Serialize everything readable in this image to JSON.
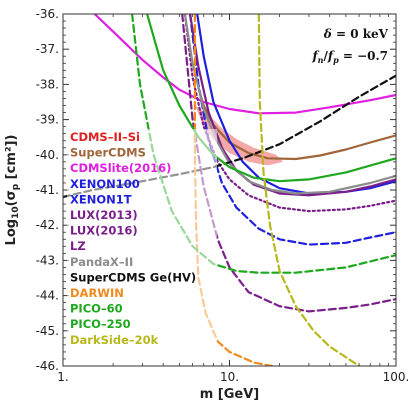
{
  "chart_data": {
    "type": "line",
    "xscale": "log",
    "xlim": [
      1,
      100
    ],
    "ylim": [
      -46,
      -36
    ],
    "xlabel": "m  [GeV]",
    "ylabel": "Log₁₀(σp [cm²])",
    "ylabel_parts": {
      "pre": "Log",
      "sub": "10",
      "mid": "(σ",
      "sub2": "p",
      "post": " [cm²])"
    },
    "x_ticks": [
      {
        "value": 1,
        "label": "1."
      },
      {
        "value": 10,
        "label": "10."
      },
      {
        "value": 100,
        "label": "100."
      }
    ],
    "y_ticks": [
      {
        "value": -36,
        "label": "-36."
      },
      {
        "value": -37,
        "label": "-37."
      },
      {
        "value": -38,
        "label": "-38."
      },
      {
        "value": -39,
        "label": "-39."
      },
      {
        "value": -40,
        "label": "-40."
      },
      {
        "value": -41,
        "label": "-41."
      },
      {
        "value": -42,
        "label": "-42."
      },
      {
        "value": -43,
        "label": "-43."
      },
      {
        "value": -44,
        "label": "-44."
      },
      {
        "value": -45,
        "label": "-45."
      },
      {
        "value": -46,
        "label": "-46."
      }
    ],
    "annotations": [
      "δ = 0 keV",
      "fn/fp = −0.7"
    ],
    "annotation_parts": {
      "delta": {
        "sym": "δ",
        "rest": " = 0 keV"
      },
      "ratio": {
        "a": "f",
        "asub": "n",
        "slash": "/",
        "b": "f",
        "bsub": "p",
        "rest": " = −0.7"
      }
    },
    "signal_region": {
      "name": "CDMS-II-Si",
      "color": "#f28b8b",
      "upper": [
        [
          6.2,
          -38.6
        ],
        [
          7,
          -38.75
        ],
        [
          8,
          -39.0
        ],
        [
          9,
          -39.25
        ],
        [
          11,
          -39.55
        ],
        [
          14,
          -39.8
        ],
        [
          19,
          -40.0
        ],
        [
          21,
          -40.2
        ]
      ],
      "lower": [
        [
          21,
          -40.2
        ],
        [
          17,
          -40.3
        ],
        [
          13,
          -40.2
        ],
        [
          10,
          -39.95
        ],
        [
          8.5,
          -39.7
        ],
        [
          7.2,
          -39.3
        ],
        [
          6.2,
          -38.6
        ]
      ]
    },
    "series": [
      {
        "name": "SuperCDMS",
        "color": "#a0663a",
        "dash": "solid",
        "points": [
          [
            6.5,
            -38.1
          ],
          [
            7,
            -38.6
          ],
          [
            8,
            -39.15
          ],
          [
            10,
            -39.65
          ],
          [
            13,
            -39.95
          ],
          [
            17,
            -40.1
          ],
          [
            25,
            -40.12
          ],
          [
            35,
            -40.02
          ],
          [
            50,
            -39.85
          ],
          [
            70,
            -39.65
          ],
          [
            100,
            -39.45
          ]
        ]
      },
      {
        "name": "CDMSlite(2016)",
        "color": "#e020e0",
        "dash": "solid",
        "points": [
          [
            1.55,
            -36.0
          ],
          [
            2,
            -36.5
          ],
          [
            3,
            -37.3
          ],
          [
            4,
            -37.8
          ],
          [
            5,
            -38.15
          ],
          [
            7,
            -38.5
          ],
          [
            10,
            -38.7
          ],
          [
            15,
            -38.82
          ],
          [
            25,
            -38.8
          ],
          [
            40,
            -38.65
          ],
          [
            70,
            -38.45
          ],
          [
            100,
            -38.3
          ]
        ]
      },
      {
        "name": "XENON100",
        "color": "#1f1fe0",
        "dash": "solid",
        "points": [
          [
            6.4,
            -36.0
          ],
          [
            7,
            -37.2
          ],
          [
            8,
            -38.5
          ],
          [
            10,
            -39.6
          ],
          [
            12,
            -40.2
          ],
          [
            15,
            -40.65
          ],
          [
            20,
            -40.95
          ],
          [
            30,
            -41.1
          ],
          [
            50,
            -41.05
          ],
          [
            70,
            -40.95
          ],
          [
            100,
            -40.75
          ]
        ]
      },
      {
        "name": "XENON1T",
        "color": "#1f1fe0",
        "dash": "dashed",
        "points": [
          [
            5.8,
            -36.0
          ],
          [
            6.5,
            -38.0
          ],
          [
            7.5,
            -39.6
          ],
          [
            9,
            -40.8
          ],
          [
            11,
            -41.5
          ],
          [
            15,
            -42.1
          ],
          [
            20,
            -42.4
          ],
          [
            30,
            -42.55
          ],
          [
            50,
            -42.5
          ],
          [
            70,
            -42.35
          ],
          [
            100,
            -42.2
          ]
        ]
      },
      {
        "name": "LUX(2013)",
        "color": "#7a1f8a",
        "dash": "solid",
        "points": [
          [
            5.8,
            -36.0
          ],
          [
            6.5,
            -37.5
          ],
          [
            7.5,
            -38.8
          ],
          [
            9,
            -39.8
          ],
          [
            11,
            -40.45
          ],
          [
            14,
            -40.85
          ],
          [
            20,
            -41.1
          ],
          [
            30,
            -41.15
          ],
          [
            50,
            -41.05
          ],
          [
            70,
            -40.9
          ],
          [
            100,
            -40.7
          ]
        ]
      },
      {
        "name": "LUX(2016)",
        "color": "#7a1f8a",
        "dash": "dotted",
        "points": [
          [
            5.4,
            -36.0
          ],
          [
            6,
            -37.8
          ],
          [
            7,
            -39.2
          ],
          [
            8.5,
            -40.2
          ],
          [
            10,
            -40.7
          ],
          [
            13,
            -41.15
          ],
          [
            20,
            -41.5
          ],
          [
            30,
            -41.6
          ],
          [
            50,
            -41.55
          ],
          [
            70,
            -41.45
          ],
          [
            100,
            -41.3
          ]
        ]
      },
      {
        "name": "LZ",
        "color": "#7a1f8a",
        "dash": "dashed",
        "points": [
          [
            5.2,
            -36.0
          ],
          [
            6,
            -39.0
          ],
          [
            7,
            -40.9
          ],
          [
            8.5,
            -42.4
          ],
          [
            10,
            -43.2
          ],
          [
            13,
            -43.9
          ],
          [
            20,
            -44.3
          ],
          [
            30,
            -44.45
          ],
          [
            50,
            -44.35
          ],
          [
            70,
            -44.25
          ],
          [
            100,
            -44.1
          ]
        ]
      },
      {
        "name": "PandaX-II",
        "color": "#8c8c8c",
        "dash": "solid",
        "points": [
          [
            5.4,
            -36.0
          ],
          [
            6,
            -37.4
          ],
          [
            7,
            -38.7
          ],
          [
            8.5,
            -39.65
          ],
          [
            10,
            -40.25
          ],
          [
            13,
            -40.75
          ],
          [
            18,
            -41.0
          ],
          [
            25,
            -41.1
          ],
          [
            40,
            -41.05
          ],
          [
            70,
            -40.8
          ],
          [
            100,
            -40.6
          ]
        ]
      },
      {
        "name": "SuperCDMS Ge(HV)",
        "color": "#111111",
        "dash": "dashed",
        "points": [
          [
            1,
            -41.2
          ],
          [
            1.5,
            -41.0
          ],
          [
            2,
            -40.9
          ],
          [
            3,
            -40.75
          ],
          [
            5,
            -40.55
          ],
          [
            8,
            -40.35
          ],
          [
            12,
            -40.1
          ],
          [
            20,
            -39.7
          ],
          [
            35,
            -39.05
          ],
          [
            60,
            -38.35
          ],
          [
            100,
            -37.75
          ]
        ]
      },
      {
        "name": "DARWIN",
        "color": "#f08a1f",
        "dash": "dashed",
        "points": [
          [
            6.2,
            -36.0
          ],
          [
            6.2,
            -40.0
          ],
          [
            6.3,
            -42.0
          ],
          [
            6.5,
            -43.5
          ],
          [
            7.2,
            -44.5
          ],
          [
            8.5,
            -45.3
          ],
          [
            10,
            -45.6
          ],
          [
            14,
            -45.9
          ],
          [
            18,
            -46.0
          ]
        ]
      },
      {
        "name": "PICO-60",
        "color": "#1ea81e",
        "dash": "solid",
        "points": [
          [
            3.2,
            -36.0
          ],
          [
            4,
            -37.6
          ],
          [
            5,
            -38.6
          ],
          [
            6.5,
            -39.5
          ],
          [
            8,
            -40.0
          ],
          [
            10,
            -40.35
          ],
          [
            14,
            -40.65
          ],
          [
            20,
            -40.75
          ],
          [
            30,
            -40.7
          ],
          [
            50,
            -40.5
          ],
          [
            100,
            -40.1
          ]
        ]
      },
      {
        "name": "PICO-250",
        "color": "#1ea81e",
        "dash": "dashed",
        "points": [
          [
            2.6,
            -36.0
          ],
          [
            2.9,
            -38.0
          ],
          [
            3.5,
            -40.0
          ],
          [
            4.5,
            -41.6
          ],
          [
            6,
            -42.6
          ],
          [
            8,
            -43.1
          ],
          [
            11,
            -43.3
          ],
          [
            15,
            -43.35
          ],
          [
            25,
            -43.35
          ],
          [
            50,
            -43.2
          ],
          [
            100,
            -42.85
          ]
        ]
      },
      {
        "name": "DarkSide-20k",
        "color": "#b8b81a",
        "dash": "dashed",
        "points": [
          [
            15,
            -36.0
          ],
          [
            15.2,
            -38.5
          ],
          [
            16,
            -40.5
          ],
          [
            17.5,
            -42.0
          ],
          [
            20,
            -43.3
          ],
          [
            25,
            -44.3
          ],
          [
            32,
            -45.0
          ],
          [
            40,
            -45.45
          ],
          [
            50,
            -45.75
          ],
          [
            60,
            -46.0
          ]
        ]
      }
    ],
    "legend": [
      {
        "label": "CDMS–II–Si",
        "color": "#e02020"
      },
      {
        "label": "SuperCDMS",
        "color": "#a0663a"
      },
      {
        "label": "CDMSlite(2016)",
        "color": "#e020e0"
      },
      {
        "label": "XENON100",
        "color": "#1f1fe0"
      },
      {
        "label": "XENON1T",
        "color": "#1f1fe0"
      },
      {
        "label": "LUX(2013)",
        "color": "#7a1f8a"
      },
      {
        "label": "LUX(2016)",
        "color": "#7a1f8a"
      },
      {
        "label": "LZ",
        "color": "#7a1f8a"
      },
      {
        "label": "PandaX–II",
        "color": "#8c8c8c"
      },
      {
        "label": "SuperCDMS Ge(HV)",
        "color": "#111111"
      },
      {
        "label": "DARWIN",
        "color": "#f08a1f"
      },
      {
        "label": "PICO–60",
        "color": "#1ea81e"
      },
      {
        "label": "PICO–250",
        "color": "#1ea81e"
      },
      {
        "label": "DarkSide–20k",
        "color": "#b8b81a"
      }
    ],
    "legend_position": "bottom-left",
    "grid": false
  }
}
